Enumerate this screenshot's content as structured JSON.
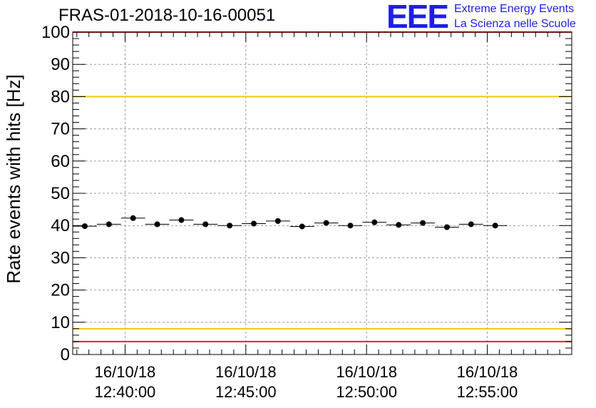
{
  "title": "FRAS-01-2018-10-16-00051",
  "logo": {
    "mark": "EEE",
    "line1": "Extreme Energy Events",
    "line2": "La Scienza nelle Scuole"
  },
  "chart_data": {
    "type": "scatter",
    "title": "FRAS-01-2018-10-16-00051",
    "ylabel": "Rate events with hits [Hz]",
    "xlabel": "",
    "ylim": [
      0,
      100
    ],
    "yticks": [
      0,
      10,
      20,
      30,
      40,
      50,
      60,
      70,
      80,
      90,
      100
    ],
    "xlim_min": [
      37.83,
      58.5
    ],
    "xticks": [
      {
        "min": 40,
        "line1": "16/10/18",
        "line2": "12:40:00"
      },
      {
        "min": 45,
        "line1": "16/10/18",
        "line2": "12:45:00"
      },
      {
        "min": 50,
        "line1": "16/10/18",
        "line2": "12:50:00"
      },
      {
        "min": 55,
        "line1": "16/10/18",
        "line2": "12:55:00"
      }
    ],
    "grid": true,
    "bin_width_min": 1.0,
    "points": [
      {
        "x": 38.33,
        "y": 39.8
      },
      {
        "x": 39.33,
        "y": 40.4
      },
      {
        "x": 40.33,
        "y": 42.3
      },
      {
        "x": 41.33,
        "y": 40.4
      },
      {
        "x": 42.33,
        "y": 41.7
      },
      {
        "x": 43.33,
        "y": 40.4
      },
      {
        "x": 44.33,
        "y": 40.0
      },
      {
        "x": 45.33,
        "y": 40.6
      },
      {
        "x": 46.33,
        "y": 41.4
      },
      {
        "x": 47.33,
        "y": 39.7
      },
      {
        "x": 48.33,
        "y": 40.8
      },
      {
        "x": 49.33,
        "y": 40.0
      },
      {
        "x": 50.33,
        "y": 41.0
      },
      {
        "x": 51.33,
        "y": 40.2
      },
      {
        "x": 52.33,
        "y": 40.8
      },
      {
        "x": 53.33,
        "y": 39.5
      },
      {
        "x": 54.33,
        "y": 40.4
      },
      {
        "x": 55.33,
        "y": 40.0
      }
    ],
    "reference_lines": [
      {
        "y": 100,
        "color": "#e8231c"
      },
      {
        "y": 80,
        "color": "#f5c518"
      },
      {
        "y": 8,
        "color": "#f5c518"
      },
      {
        "y": 4,
        "color": "#e8231c"
      }
    ]
  }
}
